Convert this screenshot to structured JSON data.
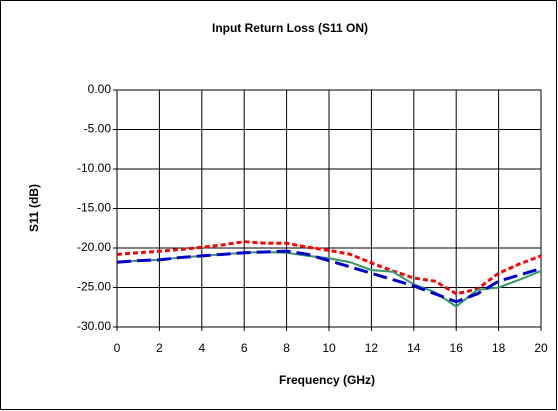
{
  "chart_data": {
    "type": "line",
    "title": "Input Return Loss (S11 ON)",
    "x_label": "Frequency (GHz)",
    "y_label": "S11 (dB)",
    "x": [
      0,
      1,
      2,
      3,
      4,
      5,
      6,
      7,
      8,
      9,
      10,
      11,
      12,
      13,
      14,
      15,
      16,
      17,
      18,
      19,
      20
    ],
    "series": [
      {
        "color": "#ff0000",
        "style": "dashed",
        "values": [
          -20.8,
          -20.6,
          -20.4,
          -20.2,
          -19.9,
          -19.6,
          -19.2,
          -19.4,
          -19.4,
          -19.9,
          -20.3,
          -20.8,
          -21.9,
          -22.9,
          -23.8,
          -24.2,
          -25.8,
          -25.2,
          -23.2,
          -22.0,
          -21.0
        ]
      },
      {
        "color": "#339966",
        "style": "solid",
        "values": [
          -21.8,
          -21.6,
          -21.5,
          -21.2,
          -21.0,
          -20.8,
          -20.6,
          -20.5,
          -20.6,
          -21.0,
          -21.3,
          -21.8,
          -22.8,
          -23.0,
          -24.6,
          -25.6,
          -27.4,
          -25.3,
          -25.0,
          -24.0,
          -22.9
        ]
      },
      {
        "color": "#0000cc",
        "style": "longdash",
        "values": [
          -21.8,
          -21.6,
          -21.5,
          -21.2,
          -21.0,
          -20.8,
          -20.6,
          -20.5,
          -20.4,
          -20.8,
          -21.6,
          -22.4,
          -23.2,
          -24.0,
          -24.8,
          -25.8,
          -26.8,
          -25.8,
          -24.2,
          -23.4,
          -22.6
        ]
      }
    ],
    "xlim": [
      0,
      20
    ],
    "xticks": [
      0,
      2,
      4,
      6,
      8,
      10,
      12,
      14,
      16,
      18,
      20
    ],
    "ylim": [
      -30,
      0
    ],
    "yticks": [
      {
        "value": -30,
        "label": "-30.00"
      },
      {
        "value": -25,
        "label": "-25.00"
      },
      {
        "value": -20,
        "label": "-20.00"
      },
      {
        "value": -15,
        "label": "-15.00"
      },
      {
        "value": -10,
        "label": "-10.00"
      },
      {
        "value": -5,
        "label": "-5.00"
      },
      {
        "value": 0,
        "label": "0.00"
      }
    ],
    "grid": true
  }
}
